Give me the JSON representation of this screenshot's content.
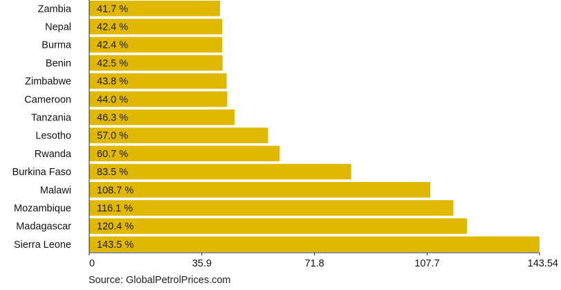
{
  "chart_data": {
    "type": "bar",
    "orientation": "horizontal",
    "categories": [
      "Zambia",
      "Nepal",
      "Burma",
      "Benin",
      "Zimbabwe",
      "Cameroon",
      "Tanzania",
      "Lesotho",
      "Rwanda",
      "Burkina Faso",
      "Malawi",
      "Mozambique",
      "Madagascar",
      "Sierra Leone"
    ],
    "values": [
      41.7,
      42.4,
      42.4,
      42.5,
      43.8,
      44.0,
      46.3,
      57.0,
      60.7,
      83.5,
      108.7,
      116.1,
      120.4,
      143.5
    ],
    "value_labels": [
      "41.7 %",
      "42.4 %",
      "42.4 %",
      "42.5 %",
      "43.8 %",
      "44.0 %",
      "46.3 %",
      "57.0 %",
      "60.7 %",
      "83.5 %",
      "108.7 %",
      "116.1 %",
      "120.4 %",
      "143.5 %"
    ],
    "xlim": [
      0,
      143.54
    ],
    "xticks": [
      0,
      35.9,
      71.8,
      107.7,
      143.54
    ],
    "xtick_labels": [
      "0",
      "35.9",
      "71.8",
      "107.7",
      "143.54"
    ],
    "title": "",
    "xlabel": "",
    "ylabel": "",
    "grid": false,
    "bar_color": "#e0b800",
    "source": "Source:  GlobalPetrolPrices.com"
  }
}
